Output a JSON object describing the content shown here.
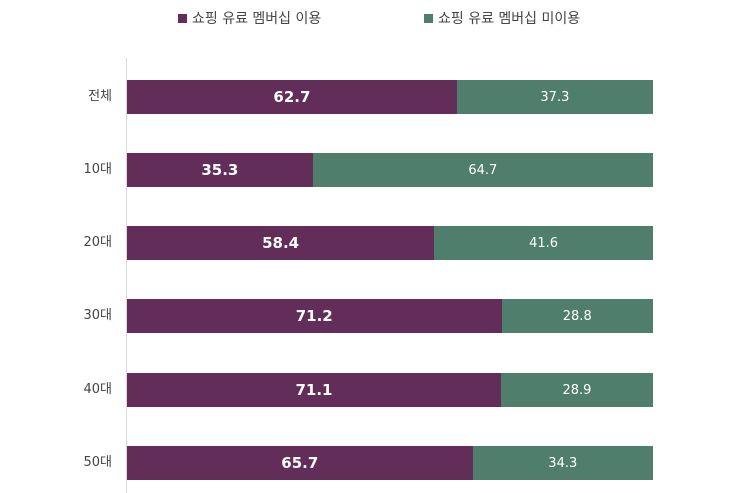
{
  "legend": {
    "items": [
      {
        "label": "쇼핑 유료 멤버십 이용",
        "color": "#632d5a"
      },
      {
        "label": "쇼핑 유료 멤버십 미이용",
        "color": "#4f7e6c"
      }
    ]
  },
  "rows": [
    {
      "label": "전체",
      "use": "62.7",
      "nonuse": "37.3"
    },
    {
      "label": "10대",
      "use": "35.3",
      "nonuse": "64.7"
    },
    {
      "label": "20대",
      "use": "58.4",
      "nonuse": "41.6"
    },
    {
      "label": "30대",
      "use": "71.2",
      "nonuse": "28.8"
    },
    {
      "label": "40대",
      "use": "71.1",
      "nonuse": "28.9"
    },
    {
      "label": "50대",
      "use": "65.7",
      "nonuse": "34.3"
    }
  ],
  "chart_data": {
    "type": "bar",
    "orientation": "horizontal",
    "stacked": true,
    "title": "",
    "xlabel": "",
    "ylabel": "",
    "xlim": [
      0,
      100
    ],
    "categories": [
      "전체",
      "10대",
      "20대",
      "30대",
      "40대",
      "50대"
    ],
    "series": [
      {
        "name": "쇼핑 유료 멤버십 이용",
        "color": "#632d5a",
        "values": [
          62.7,
          35.3,
          58.4,
          71.2,
          71.1,
          65.7
        ]
      },
      {
        "name": "쇼핑 유료 멤버십 미이용",
        "color": "#4f7e6c",
        "values": [
          37.3,
          64.7,
          41.6,
          28.8,
          28.9,
          34.3
        ]
      }
    ],
    "legend_position": "top",
    "grid": false,
    "data_labels": true
  }
}
